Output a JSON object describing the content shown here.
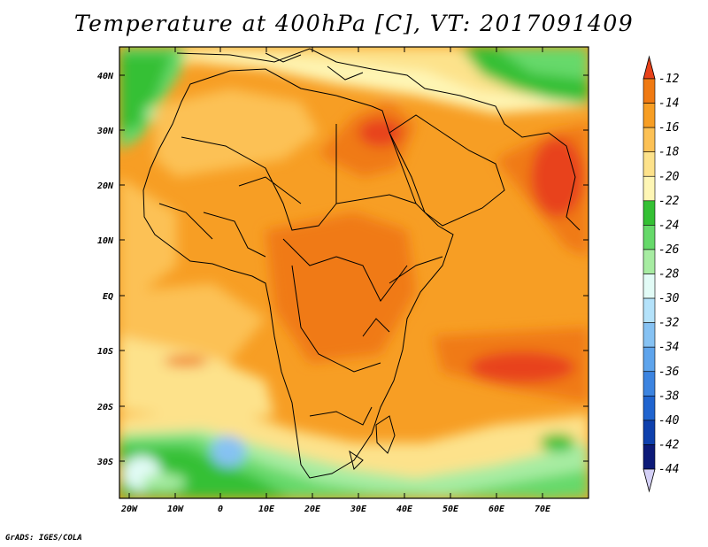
{
  "title": "Temperature at 400hPa [C], VT: 2017091409",
  "credit": "GrADS: IGES/COLA",
  "lat_labels": [
    "40N",
    "30N",
    "20N",
    "10N",
    "EQ",
    "10S",
    "20S",
    "30S"
  ],
  "lon_labels": [
    "20W",
    "10W",
    "0",
    "10E",
    "20E",
    "30E",
    "40E",
    "50E",
    "60E",
    "70E"
  ],
  "colorbar": {
    "labels": [
      "-12",
      "-14",
      "-16",
      "-18",
      "-20",
      "-22",
      "-24",
      "-26",
      "-28",
      "-30",
      "-32",
      "-34",
      "-36",
      "-38",
      "-40",
      "-42",
      "-44"
    ],
    "colors": [
      "#e8421a",
      "#f07a12",
      "#f79e24",
      "#fcc155",
      "#fde28b",
      "#fef6b5",
      "#34c034",
      "#66d96a",
      "#a7eca2",
      "#e2fbf6",
      "#b4e2fa",
      "#86c2f3",
      "#5ea4ec",
      "#3c84e0",
      "#2064cf",
      "#0e40ad",
      "#0c1a78"
    ],
    "top_triangle_color": "#e8421a",
    "bottom_triangle_color": "#d4d0f6"
  },
  "map_extent": {
    "lon": [
      -22,
      80
    ],
    "lat": [
      -37,
      45
    ]
  }
}
